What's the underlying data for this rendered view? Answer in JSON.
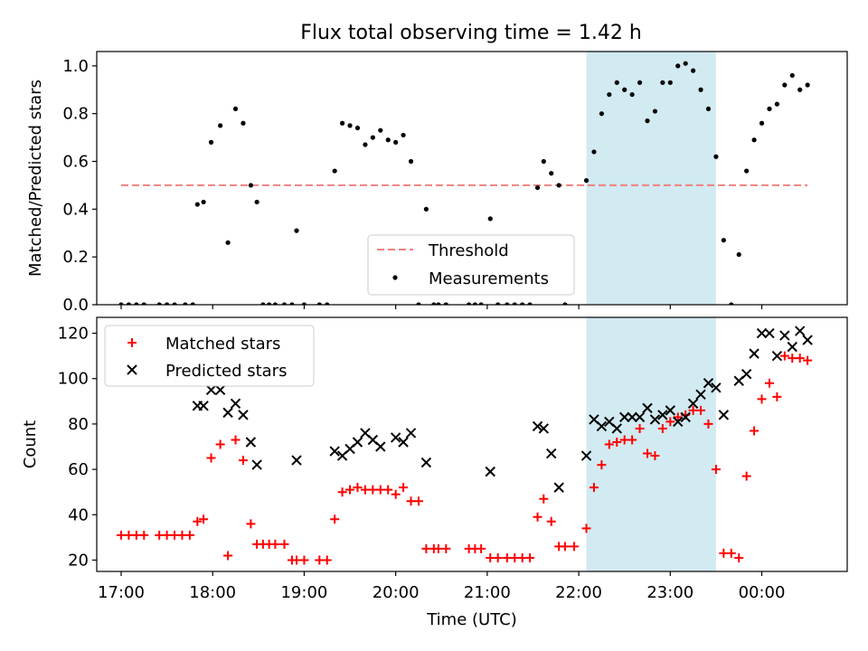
{
  "title": "Flux total observing time = 1.42 h",
  "colors": {
    "threshold": "#f08080",
    "measurements": "#000000",
    "matched": "#ff0000",
    "predicted": "#000000",
    "highlight": "#add8e6"
  },
  "chart_data": [
    {
      "type": "scatter",
      "ylabel": "Matched/Predicted stars",
      "ylim": [
        0,
        1.06
      ],
      "yticks": [
        "0.0",
        "0.2",
        "0.4",
        "0.6",
        "0.8",
        "1.0"
      ],
      "xlim": [
        "16:44",
        "00:56"
      ],
      "highlight_span": [
        "22:05",
        "23:30"
      ],
      "legend": {
        "placement": "lower-center",
        "entries": [
          "Threshold",
          "Measurements"
        ]
      },
      "threshold": {
        "name": "Threshold",
        "y": 0.5,
        "x_range": [
          "17:00",
          "00:30"
        ],
        "style": "dashed"
      },
      "series": [
        {
          "name": "Measurements",
          "marker": "dot",
          "points": [
            [
              "17:00",
              0
            ],
            [
              "17:05",
              0
            ],
            [
              "17:10",
              0
            ],
            [
              "17:15",
              0
            ],
            [
              "17:25",
              0
            ],
            [
              "17:30",
              0
            ],
            [
              "17:35",
              0
            ],
            [
              "17:42",
              0
            ],
            [
              "17:47",
              0
            ],
            [
              "17:50",
              0.42
            ],
            [
              "17:54",
              0.43
            ],
            [
              "17:59",
              0.68
            ],
            [
              "18:05",
              0.75
            ],
            [
              "18:10",
              0.26
            ],
            [
              "18:15",
              0.82
            ],
            [
              "18:20",
              0.76
            ],
            [
              "18:25",
              0.5
            ],
            [
              "18:29",
              0.43
            ],
            [
              "18:33",
              0
            ],
            [
              "18:37",
              0
            ],
            [
              "18:41",
              0
            ],
            [
              "18:47",
              0
            ],
            [
              "18:52",
              0
            ],
            [
              "18:55",
              0.31
            ],
            [
              "19:00",
              0
            ],
            [
              "19:10",
              0
            ],
            [
              "19:15",
              0
            ],
            [
              "19:20",
              0.56
            ],
            [
              "19:25",
              0.76
            ],
            [
              "19:30",
              0.75
            ],
            [
              "19:35",
              0.74
            ],
            [
              "19:40",
              0.67
            ],
            [
              "19:45",
              0.7
            ],
            [
              "19:50",
              0.73
            ],
            [
              "19:55",
              0.69
            ],
            [
              "20:00",
              0.68
            ],
            [
              "20:05",
              0.71
            ],
            [
              "20:10",
              0.6
            ],
            [
              "20:15",
              0
            ],
            [
              "20:20",
              0.4
            ],
            [
              "20:25",
              0
            ],
            [
              "20:28",
              0
            ],
            [
              "20:33",
              0
            ],
            [
              "20:48",
              0
            ],
            [
              "20:52",
              0
            ],
            [
              "20:56",
              0
            ],
            [
              "21:02",
              0.36
            ],
            [
              "21:07",
              0
            ],
            [
              "21:13",
              0
            ],
            [
              "21:18",
              0
            ],
            [
              "21:23",
              0
            ],
            [
              "21:28",
              0
            ],
            [
              "21:33",
              0.49
            ],
            [
              "21:37",
              0.6
            ],
            [
              "21:42",
              0.55
            ],
            [
              "21:47",
              0.5
            ],
            [
              "21:51",
              0
            ],
            [
              "22:05",
              0.52
            ],
            [
              "22:10",
              0.64
            ],
            [
              "22:15",
              0.8
            ],
            [
              "22:20",
              0.88
            ],
            [
              "22:25",
              0.93
            ],
            [
              "22:30",
              0.9
            ],
            [
              "22:35",
              0.88
            ],
            [
              "22:40",
              0.93
            ],
            [
              "22:45",
              0.77
            ],
            [
              "22:50",
              0.81
            ],
            [
              "22:55",
              0.93
            ],
            [
              "23:00",
              0.93
            ],
            [
              "23:05",
              1.0
            ],
            [
              "23:10",
              1.01
            ],
            [
              "23:15",
              0.98
            ],
            [
              "23:20",
              0.9
            ],
            [
              "23:25",
              0.82
            ],
            [
              "23:30",
              0.62
            ],
            [
              "23:35",
              0.27
            ],
            [
              "23:40",
              0
            ],
            [
              "23:45",
              0.21
            ],
            [
              "23:50",
              0.56
            ],
            [
              "23:55",
              0.69
            ],
            [
              "00:00",
              0.76
            ],
            [
              "00:05",
              0.82
            ],
            [
              "00:10",
              0.84
            ],
            [
              "00:15",
              0.92
            ],
            [
              "00:20",
              0.96
            ],
            [
              "00:25",
              0.9
            ],
            [
              "00:30",
              0.92
            ]
          ]
        }
      ]
    },
    {
      "type": "scatter",
      "ylabel": "Count",
      "xlabel": "Time (UTC)",
      "ylim": [
        15,
        127
      ],
      "yticks": [
        "20",
        "40",
        "60",
        "80",
        "100",
        "120"
      ],
      "xlim": [
        "16:44",
        "00:56"
      ],
      "xticks": [
        "17:00",
        "18:00",
        "19:00",
        "20:00",
        "21:00",
        "22:00",
        "23:00",
        "00:00"
      ],
      "highlight_span": [
        "22:05",
        "23:30"
      ],
      "legend": {
        "placement": "upper-left",
        "entries": [
          "Matched stars",
          "Predicted stars"
        ]
      },
      "series": [
        {
          "name": "Matched stars",
          "marker": "plus",
          "points": [
            [
              "17:00",
              31
            ],
            [
              "17:05",
              31
            ],
            [
              "17:10",
              31
            ],
            [
              "17:15",
              31
            ],
            [
              "17:25",
              31
            ],
            [
              "17:30",
              31
            ],
            [
              "17:35",
              31
            ],
            [
              "17:40",
              31
            ],
            [
              "17:45",
              31
            ],
            [
              "17:50",
              37
            ],
            [
              "17:54",
              38
            ],
            [
              "17:59",
              65
            ],
            [
              "18:05",
              71
            ],
            [
              "18:10",
              22
            ],
            [
              "18:15",
              73
            ],
            [
              "18:20",
              64
            ],
            [
              "18:25",
              36
            ],
            [
              "18:29",
              27
            ],
            [
              "18:33",
              27
            ],
            [
              "18:37",
              27
            ],
            [
              "18:41",
              27
            ],
            [
              "18:47",
              27
            ],
            [
              "18:52",
              20
            ],
            [
              "18:55",
              20
            ],
            [
              "19:00",
              20
            ],
            [
              "19:10",
              20
            ],
            [
              "19:15",
              20
            ],
            [
              "19:20",
              38
            ],
            [
              "19:25",
              50
            ],
            [
              "19:30",
              51
            ],
            [
              "19:35",
              52
            ],
            [
              "19:40",
              51
            ],
            [
              "19:45",
              51
            ],
            [
              "19:50",
              51
            ],
            [
              "19:55",
              51
            ],
            [
              "20:00",
              49
            ],
            [
              "20:05",
              52
            ],
            [
              "20:10",
              46
            ],
            [
              "20:15",
              46
            ],
            [
              "20:20",
              25
            ],
            [
              "20:25",
              25
            ],
            [
              "20:28",
              25
            ],
            [
              "20:33",
              25
            ],
            [
              "20:48",
              25
            ],
            [
              "20:52",
              25
            ],
            [
              "20:56",
              25
            ],
            [
              "21:02",
              21
            ],
            [
              "21:07",
              21
            ],
            [
              "21:13",
              21
            ],
            [
              "21:18",
              21
            ],
            [
              "21:23",
              21
            ],
            [
              "21:28",
              21
            ],
            [
              "21:33",
              39
            ],
            [
              "21:37",
              47
            ],
            [
              "21:42",
              37
            ],
            [
              "21:47",
              26
            ],
            [
              "21:51",
              26
            ],
            [
              "21:57",
              26
            ],
            [
              "22:05",
              34
            ],
            [
              "22:10",
              52
            ],
            [
              "22:15",
              62
            ],
            [
              "22:20",
              71
            ],
            [
              "22:25",
              72
            ],
            [
              "22:30",
              73
            ],
            [
              "22:35",
              73
            ],
            [
              "22:40",
              78
            ],
            [
              "22:45",
              67
            ],
            [
              "22:50",
              66
            ],
            [
              "22:55",
              78
            ],
            [
              "23:00",
              81
            ],
            [
              "23:05",
              83
            ],
            [
              "23:10",
              84
            ],
            [
              "23:15",
              86
            ],
            [
              "23:20",
              86
            ],
            [
              "23:25",
              80
            ],
            [
              "23:30",
              60
            ],
            [
              "23:35",
              23
            ],
            [
              "23:40",
              23
            ],
            [
              "23:45",
              21
            ],
            [
              "23:50",
              57
            ],
            [
              "23:55",
              77
            ],
            [
              "00:00",
              91
            ],
            [
              "00:05",
              98
            ],
            [
              "00:10",
              92
            ],
            [
              "00:15",
              110
            ],
            [
              "00:20",
              109
            ],
            [
              "00:25",
              109
            ],
            [
              "00:30",
              108
            ]
          ]
        },
        {
          "name": "Predicted stars",
          "marker": "x",
          "points": [
            [
              "17:50",
              88
            ],
            [
              "17:54",
              88
            ],
            [
              "17:59",
              95
            ],
            [
              "18:05",
              95
            ],
            [
              "18:10",
              85
            ],
            [
              "18:15",
              89
            ],
            [
              "18:20",
              84
            ],
            [
              "18:25",
              72
            ],
            [
              "18:29",
              62
            ],
            [
              "18:55",
              64
            ],
            [
              "19:20",
              68
            ],
            [
              "19:25",
              66
            ],
            [
              "19:30",
              69
            ],
            [
              "19:35",
              72
            ],
            [
              "19:40",
              76
            ],
            [
              "19:45",
              73
            ],
            [
              "19:50",
              70
            ],
            [
              "20:00",
              74
            ],
            [
              "20:05",
              72
            ],
            [
              "20:10",
              76
            ],
            [
              "20:20",
              63
            ],
            [
              "21:02",
              59
            ],
            [
              "21:33",
              79
            ],
            [
              "21:37",
              78
            ],
            [
              "21:42",
              67
            ],
            [
              "21:47",
              52
            ],
            [
              "22:05",
              66
            ],
            [
              "22:10",
              82
            ],
            [
              "22:15",
              79
            ],
            [
              "22:20",
              81
            ],
            [
              "22:25",
              78
            ],
            [
              "22:30",
              83
            ],
            [
              "22:35",
              83
            ],
            [
              "22:40",
              83
            ],
            [
              "22:45",
              87
            ],
            [
              "22:50",
              82
            ],
            [
              "22:55",
              84
            ],
            [
              "23:00",
              86
            ],
            [
              "23:05",
              81
            ],
            [
              "23:10",
              83
            ],
            [
              "23:15",
              89
            ],
            [
              "23:20",
              93
            ],
            [
              "23:25",
              98
            ],
            [
              "23:30",
              96
            ],
            [
              "23:35",
              84
            ],
            [
              "23:45",
              99
            ],
            [
              "23:50",
              102
            ],
            [
              "23:55",
              111
            ],
            [
              "00:00",
              120
            ],
            [
              "00:05",
              120
            ],
            [
              "00:10",
              110
            ],
            [
              "00:15",
              119
            ],
            [
              "00:20",
              114
            ],
            [
              "00:25",
              121
            ],
            [
              "00:30",
              117
            ]
          ]
        }
      ]
    }
  ]
}
